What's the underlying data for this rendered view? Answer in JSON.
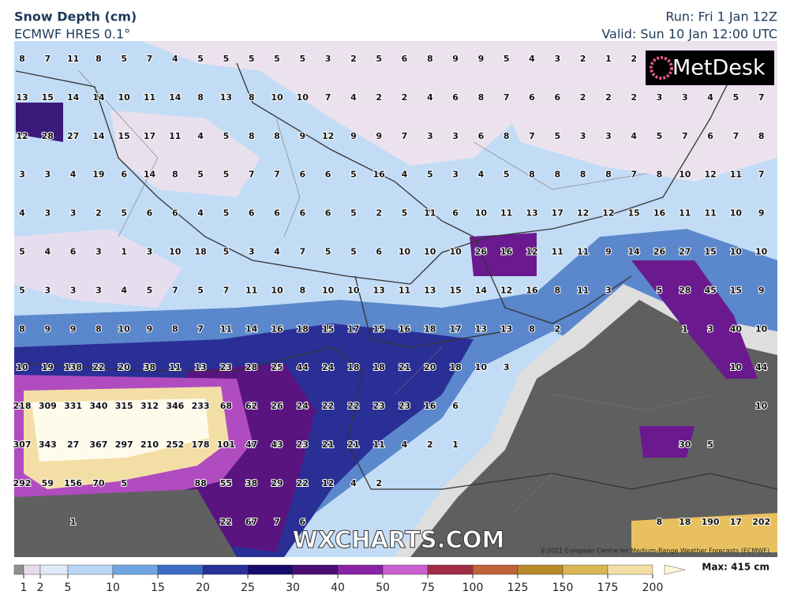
{
  "header": {
    "title": "Snow Depth (cm)",
    "subtitle": "ECMWF HRES 0.1°",
    "run": "Run: Fri 1 Jan 12Z",
    "valid": "Valid: Sun 10 Jan 12:00 UTC"
  },
  "branding": {
    "logo": "MetDesk",
    "site": "WXCHARTS.COM",
    "credit": "©2021 European Centre for Medium-Range Weather Forecasts (ECMWF)"
  },
  "grid": {
    "rows": [
      [
        8,
        7,
        11,
        8,
        5,
        7,
        4,
        5,
        5,
        5,
        5,
        5,
        3,
        2,
        5,
        6,
        8,
        9,
        9,
        5,
        4,
        3,
        2,
        1,
        2,
        null,
        null,
        null,
        null,
        null
      ],
      [
        13,
        15,
        14,
        14,
        10,
        11,
        14,
        8,
        13,
        8,
        10,
        10,
        7,
        4,
        2,
        2,
        4,
        6,
        8,
        7,
        6,
        6,
        2,
        2,
        2,
        3,
        3,
        4,
        5,
        7
      ],
      [
        12,
        28,
        27,
        14,
        15,
        17,
        11,
        4,
        5,
        8,
        8,
        9,
        12,
        9,
        9,
        7,
        3,
        3,
        6,
        8,
        7,
        5,
        3,
        3,
        4,
        5,
        7,
        6,
        7,
        8
      ],
      [
        3,
        3,
        4,
        19,
        6,
        14,
        8,
        5,
        5,
        7,
        7,
        6,
        6,
        5,
        16,
        4,
        5,
        3,
        4,
        5,
        8,
        8,
        8,
        8,
        7,
        8,
        10,
        12,
        11,
        7
      ],
      [
        4,
        3,
        3,
        2,
        5,
        6,
        6,
        4,
        5,
        6,
        6,
        6,
        6,
        5,
        2,
        5,
        11,
        6,
        10,
        11,
        13,
        17,
        12,
        12,
        15,
        16,
        11,
        11,
        10,
        9
      ],
      [
        5,
        4,
        6,
        3,
        1,
        3,
        10,
        18,
        5,
        3,
        4,
        7,
        5,
        5,
        6,
        10,
        10,
        10,
        26,
        16,
        12,
        11,
        11,
        9,
        14,
        26,
        27,
        15,
        10,
        10
      ],
      [
        5,
        3,
        3,
        3,
        4,
        5,
        7,
        5,
        7,
        11,
        10,
        8,
        10,
        10,
        13,
        11,
        13,
        15,
        14,
        12,
        16,
        8,
        11,
        3,
        null,
        5,
        28,
        45,
        15,
        9
      ],
      [
        8,
        9,
        9,
        8,
        10,
        9,
        8,
        7,
        11,
        14,
        16,
        18,
        15,
        17,
        15,
        16,
        18,
        17,
        13,
        13,
        8,
        2,
        null,
        null,
        null,
        null,
        1,
        3,
        40,
        10
      ],
      [
        10,
        19,
        138,
        22,
        20,
        38,
        11,
        13,
        23,
        28,
        25,
        44,
        24,
        18,
        18,
        21,
        20,
        18,
        10,
        3,
        null,
        null,
        null,
        null,
        null,
        null,
        null,
        null,
        10,
        44
      ],
      [
        218,
        309,
        331,
        340,
        315,
        312,
        346,
        233,
        68,
        62,
        26,
        24,
        22,
        22,
        23,
        23,
        16,
        6,
        null,
        null,
        null,
        null,
        null,
        null,
        null,
        null,
        null,
        null,
        null,
        10
      ],
      [
        307,
        343,
        27,
        367,
        297,
        210,
        252,
        178,
        101,
        47,
        43,
        23,
        21,
        21,
        11,
        4,
        2,
        1,
        null,
        null,
        null,
        null,
        null,
        null,
        null,
        null,
        30,
        5,
        null,
        null
      ],
      [
        292,
        59,
        156,
        70,
        5,
        null,
        null,
        88,
        55,
        38,
        29,
        22,
        12,
        4,
        2,
        null,
        null,
        null,
        null,
        null,
        null,
        null,
        null,
        null,
        null,
        null,
        null,
        null,
        null,
        null
      ],
      [
        null,
        null,
        1,
        null,
        null,
        null,
        null,
        null,
        22,
        67,
        7,
        6,
        null,
        null,
        null,
        null,
        null,
        null,
        null,
        null,
        null,
        null,
        null,
        null,
        null,
        8,
        18,
        190,
        17,
        202
      ]
    ]
  },
  "legend": {
    "labels": [
      1,
      2,
      5,
      10,
      15,
      20,
      25,
      30,
      40,
      50,
      75,
      100,
      125,
      150,
      175,
      200
    ],
    "max": "Max: 415 cm",
    "colors": [
      "#8e8e8e",
      "#e6dbe8",
      "#dfe9f7",
      "#b8d6f4",
      "#6fa6e2",
      "#3d6cc4",
      "#27319a",
      "#160c6b",
      "#4a0d72",
      "#8a22a4",
      "#c860d0",
      "#a02d45",
      "#c0623a",
      "#b88a2a",
      "#d8b654",
      "#f3dfa6",
      "#fff6dc"
    ]
  }
}
